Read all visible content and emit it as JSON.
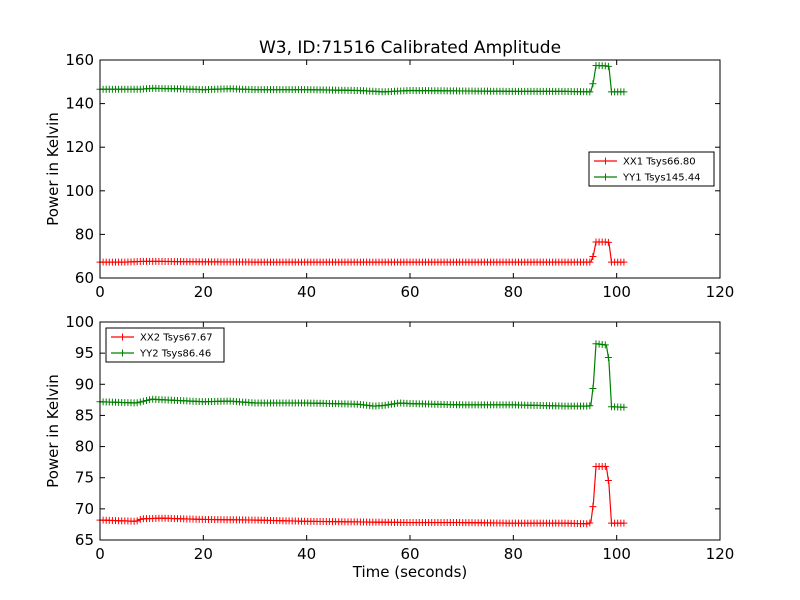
{
  "title": "W3, ID:71516 Calibrated Amplitude",
  "xlabel": "Time (seconds)",
  "chart_data": [
    {
      "type": "line",
      "title": "W3, ID:71516 Calibrated Amplitude",
      "xlabel": "",
      "ylabel": "Power in Kelvin",
      "xlim": [
        0,
        120
      ],
      "ylim": [
        60,
        160
      ],
      "xticks": [
        "0",
        "20",
        "40",
        "60",
        "80",
        "100",
        "120"
      ],
      "yticks": [
        "60",
        "80",
        "100",
        "120",
        "140",
        "160"
      ],
      "grid": false,
      "legend_position": "right",
      "series": [
        {
          "name": "XX1 Tsys66.80",
          "color": "#ff0000",
          "marker": "+",
          "points": [
            [
              0,
              67.3
            ],
            [
              5,
              67.3
            ],
            [
              8,
              67.6
            ],
            [
              12,
              67.6
            ],
            [
              20,
              67.4
            ],
            [
              30,
              67.3
            ],
            [
              40,
              67.3
            ],
            [
              50,
              67.3
            ],
            [
              60,
              67.3
            ],
            [
              70,
              67.3
            ],
            [
              80,
              67.3
            ],
            [
              90,
              67.3
            ],
            [
              94.5,
              67.3
            ],
            [
              95,
              67.3
            ],
            [
              95.5,
              70.5
            ],
            [
              96,
              76.5
            ],
            [
              98,
              76.5
            ],
            [
              98.5,
              76.3
            ],
            [
              99,
              67.3
            ],
            [
              101.5,
              67.3
            ]
          ]
        },
        {
          "name": "YY1 Tsys145.44",
          "color": "#008000",
          "marker": "+",
          "points": [
            [
              0,
              146.6
            ],
            [
              8,
              146.6
            ],
            [
              10,
              147.0
            ],
            [
              15,
              146.8
            ],
            [
              20,
              146.4
            ],
            [
              25,
              146.8
            ],
            [
              30,
              146.4
            ],
            [
              40,
              146.4
            ],
            [
              50,
              146.0
            ],
            [
              55,
              145.4
            ],
            [
              60,
              146.0
            ],
            [
              70,
              145.8
            ],
            [
              80,
              145.6
            ],
            [
              90,
              145.6
            ],
            [
              94.5,
              145.4
            ],
            [
              95,
              145.4
            ],
            [
              95.5,
              150.0
            ],
            [
              96,
              157.5
            ],
            [
              98,
              157.3
            ],
            [
              98.5,
              157.0
            ],
            [
              99,
              145.4
            ],
            [
              101.5,
              145.4
            ]
          ]
        }
      ]
    },
    {
      "type": "line",
      "title": "",
      "xlabel": "Time (seconds)",
      "ylabel": "Power in Kelvin",
      "xlim": [
        0,
        120
      ],
      "ylim": [
        65,
        100
      ],
      "xticks": [
        "0",
        "20",
        "40",
        "60",
        "80",
        "100",
        "120"
      ],
      "yticks": [
        "65",
        "70",
        "75",
        "80",
        "85",
        "90",
        "95",
        "100"
      ],
      "grid": false,
      "legend_position": "top-left",
      "series": [
        {
          "name": "XX2 Tsys67.67",
          "color": "#ff0000",
          "marker": "+",
          "points": [
            [
              0,
              68.2
            ],
            [
              7,
              68.0
            ],
            [
              8,
              68.4
            ],
            [
              12,
              68.5
            ],
            [
              20,
              68.3
            ],
            [
              30,
              68.2
            ],
            [
              40,
              68.0
            ],
            [
              50,
              67.9
            ],
            [
              60,
              67.8
            ],
            [
              70,
              67.8
            ],
            [
              80,
              67.7
            ],
            [
              90,
              67.7
            ],
            [
              94.5,
              67.6
            ],
            [
              95,
              67.8
            ],
            [
              95.5,
              71.0
            ],
            [
              96,
              76.8
            ],
            [
              98,
              76.8
            ],
            [
              98.5,
              74.0
            ],
            [
              99,
              67.7
            ],
            [
              101.5,
              67.7
            ]
          ]
        },
        {
          "name": "YY2 Tsys86.46",
          "color": "#008000",
          "marker": "+",
          "points": [
            [
              0,
              87.2
            ],
            [
              7,
              87.0
            ],
            [
              10,
              87.6
            ],
            [
              15,
              87.4
            ],
            [
              20,
              87.2
            ],
            [
              25,
              87.3
            ],
            [
              30,
              87.0
            ],
            [
              40,
              87.0
            ],
            [
              50,
              86.8
            ],
            [
              53,
              86.5
            ],
            [
              55,
              86.6
            ],
            [
              58,
              87.0
            ],
            [
              60,
              86.9
            ],
            [
              70,
              86.7
            ],
            [
              80,
              86.7
            ],
            [
              90,
              86.5
            ],
            [
              94.5,
              86.5
            ],
            [
              95,
              86.6
            ],
            [
              95.5,
              90.0
            ],
            [
              96,
              96.5
            ],
            [
              98,
              96.3
            ],
            [
              98.5,
              93.8
            ],
            [
              99,
              86.4
            ],
            [
              101.5,
              86.3
            ]
          ]
        }
      ]
    }
  ]
}
